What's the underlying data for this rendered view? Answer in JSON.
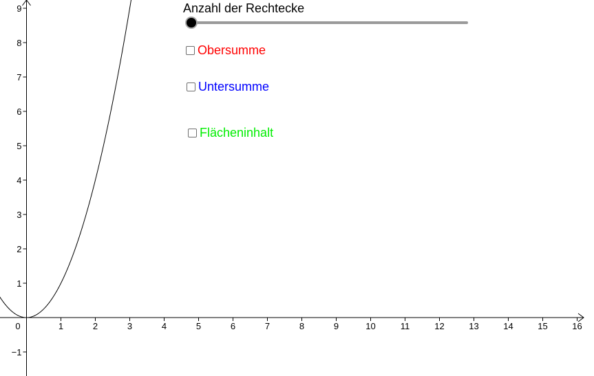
{
  "slider": {
    "caption": "Anzahl der Rechtecke",
    "value_fraction": 0
  },
  "checkboxes": {
    "obersumme": {
      "label": "Obersumme",
      "checked": false,
      "color": "#ff0000"
    },
    "untersumme": {
      "label": "Untersumme",
      "checked": false,
      "color": "#0000ff"
    },
    "flaecheninhalt": {
      "label": "Flächeninhalt",
      "checked": false,
      "color": "#00ee00"
    }
  },
  "axes": {
    "x_ticks": [
      "1",
      "2",
      "3",
      "4",
      "5",
      "6",
      "7",
      "8",
      "9",
      "10",
      "11",
      "12",
      "13",
      "14",
      "15",
      "16"
    ],
    "y_ticks": [
      "1",
      "2",
      "3",
      "4",
      "5",
      "6",
      "7",
      "8",
      "9"
    ],
    "y_negative_ticks": [
      "−1"
    ],
    "origin_label": "0"
  },
  "function": {
    "coefficient": 1,
    "exponent": 2,
    "x_min": -1,
    "x_max": 3.1,
    "color": "#000000"
  }
}
